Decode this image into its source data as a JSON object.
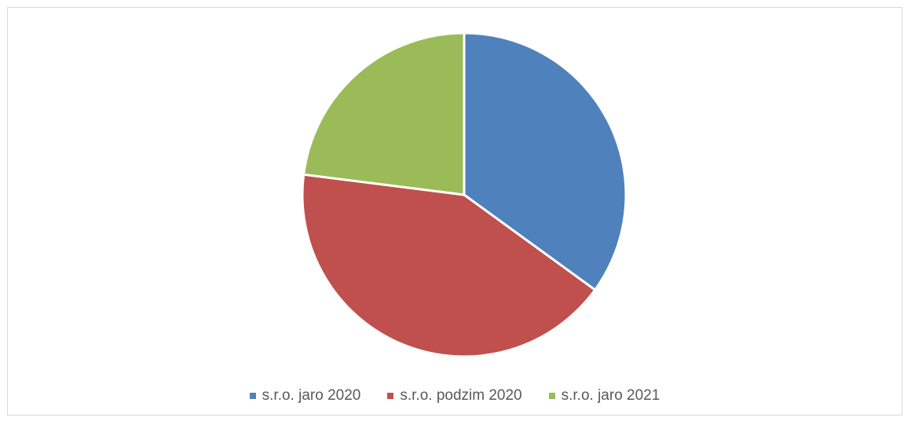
{
  "chart_data": {
    "type": "pie",
    "title": "",
    "categories": [
      "s.r.o. jaro 2020",
      "s.r.o. podzim 2020",
      "s.r.o. jaro 2021"
    ],
    "values": [
      35,
      42,
      23
    ],
    "colors": [
      "#4F81BD",
      "#C0504D",
      "#9BBB59"
    ],
    "start_angle_deg": 0,
    "direction": "clockwise",
    "legend_position": "bottom",
    "slice_border_color": "#ffffff"
  }
}
